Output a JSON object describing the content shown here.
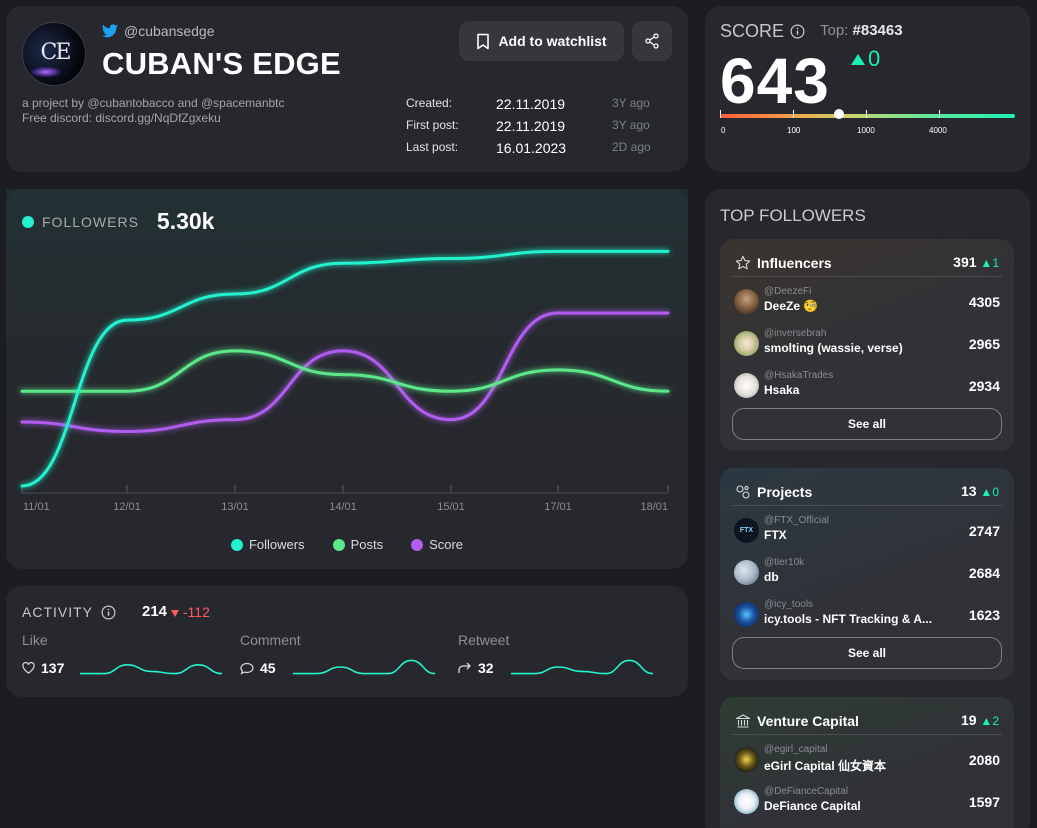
{
  "profile": {
    "twitter_handle": "@cubansedge",
    "name": "CUBAN'S EDGE",
    "avatar_text": "CE",
    "description_line1": "a project by @cubantobacco and @spacemanbtc",
    "description_line2": "Free discord: discord.gg/NqDfZgxeku",
    "watchlist_label": "Add to watchlist",
    "dates": [
      {
        "label": "Created:",
        "value": "22.11.2019",
        "ago": "3Y ago"
      },
      {
        "label": "First post:",
        "value": "22.11.2019",
        "ago": "3Y ago"
      },
      {
        "label": "Last post:",
        "value": "16.01.2023",
        "ago": "2D ago"
      }
    ]
  },
  "score": {
    "label": "SCORE",
    "top_label": "Top:",
    "top_rank": "#83463",
    "value": "643",
    "delta": "0",
    "scale_labels": [
      "0",
      "100",
      "1000",
      "4000"
    ],
    "scale_position": 0.405,
    "colors": {
      "up": "#19f0b4"
    }
  },
  "followers": {
    "label": "FOLLOWERS",
    "value": "5.30k",
    "legend": [
      "Followers",
      "Posts",
      "Score"
    ],
    "colors": {
      "followers": "#22f2cf",
      "posts": "#5ce88a",
      "score": "#b25cf0"
    }
  },
  "chart_data": {
    "type": "line",
    "x": [
      "11/01",
      "12/01",
      "13/01",
      "14/01",
      "15/01",
      "17/01",
      "18/01"
    ],
    "series": [
      {
        "name": "Followers",
        "values": [
          0.0,
          0.7,
          0.81,
          0.94,
          0.96,
          0.99,
          0.99
        ]
      },
      {
        "name": "Posts",
        "values": [
          0.4,
          0.4,
          0.57,
          0.47,
          0.4,
          0.49,
          0.4
        ]
      },
      {
        "name": "Score",
        "values": [
          0.27,
          0.23,
          0.28,
          0.57,
          0.28,
          0.73,
          0.73
        ]
      }
    ],
    "title": "",
    "xlabel": "",
    "ylabel": "",
    "ylim": [
      0,
      1
    ],
    "grid": false,
    "legend": "bottom"
  },
  "activity": {
    "label": "ACTIVITY",
    "total": "214",
    "delta": "-112",
    "items": [
      {
        "label": "Like",
        "count": "137",
        "icon": "heart-icon",
        "spark": [
          0.2,
          0.2,
          0.6,
          0.3,
          0.2,
          0.6,
          0.2
        ]
      },
      {
        "label": "Comment",
        "count": "45",
        "icon": "comment-icon",
        "spark": [
          0.2,
          0.2,
          0.5,
          0.2,
          0.2,
          0.8,
          0.2
        ]
      },
      {
        "label": "Retweet",
        "count": "32",
        "icon": "retweet-icon",
        "spark": [
          0.2,
          0.2,
          0.5,
          0.3,
          0.2,
          0.8,
          0.2
        ]
      }
    ]
  },
  "top_followers": {
    "title": "TOP FOLLOWERS",
    "see_all": "See all",
    "groups": [
      {
        "name": "Influencers",
        "icon": "star-icon",
        "count": "391",
        "delta": "1",
        "rows": [
          {
            "handle": "@DeezeFi",
            "name": "DeeZe 🧐",
            "value": "4305",
            "avatar_color": "#8b6f4e"
          },
          {
            "handle": "@inversebrah",
            "name": "smolting (wassie, verse)",
            "value": "2965",
            "avatar_color": "#d7c9a5"
          },
          {
            "handle": "@HsakaTrades",
            "name": "Hsaka",
            "value": "2934",
            "avatar_color": "#e6e2dc"
          }
        ]
      },
      {
        "name": "Projects",
        "icon": "projects-icon",
        "count": "13",
        "delta": "0",
        "rows": [
          {
            "handle": "@FTX_Official",
            "name": "FTX",
            "value": "2747",
            "avatar_color": "#101520",
            "avatar_text": "FTX"
          },
          {
            "handle": "@tier10k",
            "name": "db",
            "value": "2684",
            "avatar_color": "#a9b7c7"
          },
          {
            "handle": "@icy_tools",
            "name": "icy.tools - NFT Tracking & A...",
            "value": "1623",
            "avatar_color": "#0a1a3a"
          }
        ]
      },
      {
        "name": "Venture Capital",
        "icon": "bank-icon",
        "count": "19",
        "delta": "2",
        "rows": [
          {
            "handle": "@egirl_capital",
            "name": "eGirl Capital 仙女資本",
            "value": "2080",
            "avatar_color": "#1a1a1a"
          },
          {
            "handle": "@DeFianceCapital",
            "name": "DeFiance Capital",
            "value": "1597",
            "avatar_color": "#e8eef5"
          }
        ]
      }
    ]
  }
}
